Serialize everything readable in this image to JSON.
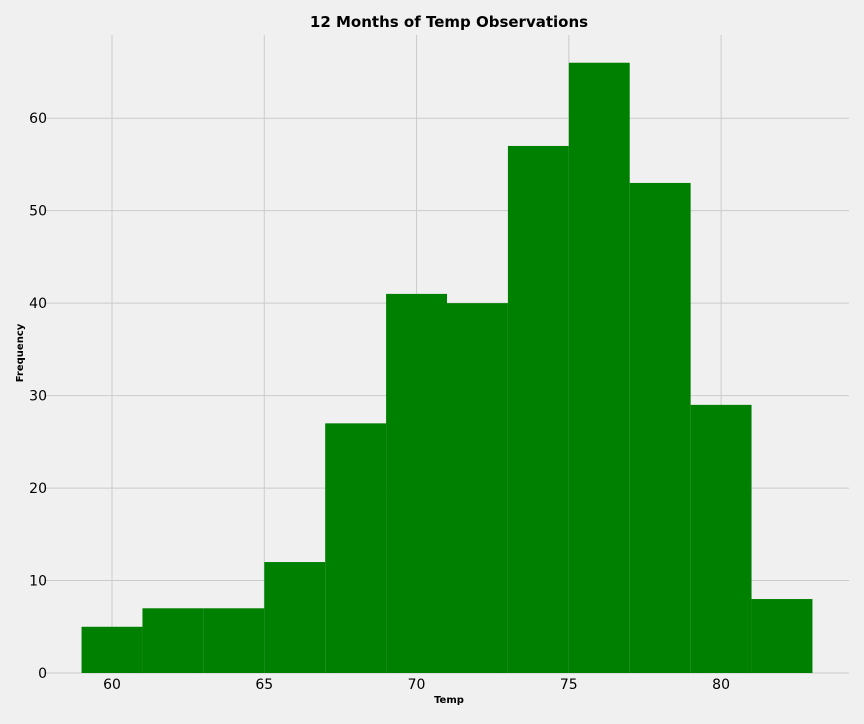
{
  "chart_data": {
    "type": "bar",
    "title": "12 Months of Temp Observations",
    "xlabel": "Temp",
    "ylabel": "Frequency",
    "bins": [
      {
        "x0": 59,
        "x1": 61,
        "count": 5
      },
      {
        "x0": 61,
        "x1": 63,
        "count": 7
      },
      {
        "x0": 63,
        "x1": 65,
        "count": 7
      },
      {
        "x0": 65,
        "x1": 67,
        "count": 12
      },
      {
        "x0": 67,
        "x1": 69,
        "count": 27
      },
      {
        "x0": 69,
        "x1": 71,
        "count": 41
      },
      {
        "x0": 71,
        "x1": 73,
        "count": 40
      },
      {
        "x0": 73,
        "x1": 75,
        "count": 57
      },
      {
        "x0": 75,
        "x1": 77,
        "count": 66
      },
      {
        "x0": 77,
        "x1": 79,
        "count": 53
      },
      {
        "x0": 79,
        "x1": 81,
        "count": 29
      },
      {
        "x0": 81,
        "x1": 83,
        "count": 8
      }
    ],
    "xlim": [
      57.8,
      84.2
    ],
    "ylim": [
      0,
      69
    ],
    "xticks": [
      60,
      65,
      70,
      75,
      80
    ],
    "yticks": [
      0,
      10,
      20,
      30,
      40,
      50,
      60
    ],
    "grid": true,
    "bar_color": "#008000",
    "background_color": "#f0f0f0",
    "grid_color": "#cbcbcb"
  }
}
